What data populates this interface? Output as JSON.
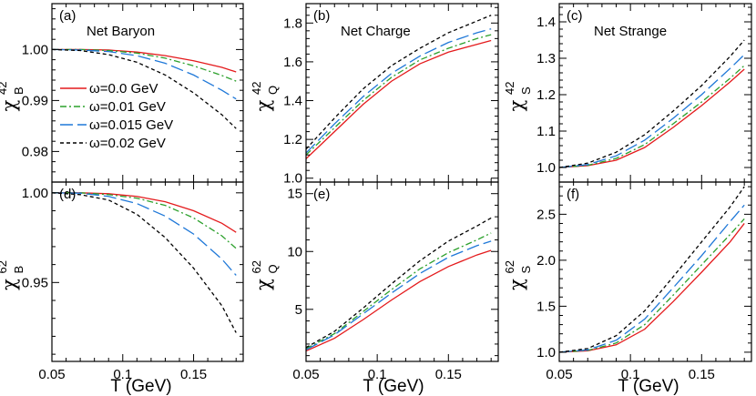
{
  "chart_data": [
    {
      "type": "line",
      "panel": "(a)",
      "title": "Net Baryon",
      "ylabel_sym": "χ",
      "ylabel_sup": "42",
      "ylabel_sub": "B",
      "xlim": [
        0.05,
        0.185
      ],
      "ylim": [
        0.974,
        1.009
      ],
      "xticks": [
        0.05,
        0.1,
        0.15
      ],
      "xticklabels": [
        "",
        "",
        ""
      ],
      "yticks": [
        0.98,
        0.99,
        1.0
      ],
      "yticklabels": [
        "0.98",
        "0.99",
        "1.00"
      ],
      "x": [
        0.05,
        0.07,
        0.09,
        0.11,
        0.13,
        0.15,
        0.17,
        0.18
      ],
      "series": [
        {
          "name": "ω=0.0 GeV",
          "color": "#e41a1c",
          "dash": "solid",
          "values": [
            1.0,
            1.0,
            0.9999,
            0.9995,
            0.9988,
            0.9978,
            0.9965,
            0.9956
          ]
        },
        {
          "name": "ω=0.01 GeV",
          "color": "#2ca02c",
          "dash": "dashdot",
          "values": [
            1.0,
            1.0,
            0.9998,
            0.9993,
            0.9983,
            0.9968,
            0.9949,
            0.9938
          ]
        },
        {
          "name": "ω=0.015 GeV",
          "color": "#1f78d8",
          "dash": "longdash",
          "values": [
            1.0,
            0.9999,
            0.9996,
            0.9988,
            0.9973,
            0.995,
            0.992,
            0.9903
          ]
        },
        {
          "name": "ω=0.02 GeV",
          "color": "#000000",
          "dash": "dash",
          "values": [
            1.0,
            0.9998,
            0.999,
            0.9975,
            0.995,
            0.9915,
            0.9872,
            0.9845
          ]
        }
      ]
    },
    {
      "type": "line",
      "panel": "(b)",
      "title": "Net Charge",
      "ylabel_sym": "χ",
      "ylabel_sup": "42",
      "ylabel_sub": "Q",
      "xlim": [
        0.05,
        0.185
      ],
      "ylim": [
        0.98,
        1.9
      ],
      "xticks": [
        0.05,
        0.1,
        0.15
      ],
      "xticklabels": [
        "",
        "",
        ""
      ],
      "yticks": [
        1.0,
        1.2,
        1.4,
        1.6,
        1.8
      ],
      "yticklabels": [
        "1.0",
        "1.2",
        "1.4",
        "1.6",
        "1.8"
      ],
      "x": [
        0.05,
        0.07,
        0.09,
        0.11,
        0.13,
        0.15,
        0.17,
        0.18
      ],
      "series": [
        {
          "name": "ω=0.0 GeV",
          "color": "#e41a1c",
          "dash": "solid",
          "values": [
            1.1,
            1.24,
            1.38,
            1.5,
            1.59,
            1.65,
            1.69,
            1.71
          ]
        },
        {
          "name": "ω=0.01 GeV",
          "color": "#2ca02c",
          "dash": "dashdot",
          "values": [
            1.12,
            1.26,
            1.4,
            1.52,
            1.61,
            1.67,
            1.72,
            1.74
          ]
        },
        {
          "name": "ω=0.015 GeV",
          "color": "#1f78d8",
          "dash": "longdash",
          "values": [
            1.13,
            1.28,
            1.42,
            1.54,
            1.63,
            1.7,
            1.75,
            1.77
          ]
        },
        {
          "name": "ω=0.02 GeV",
          "color": "#000000",
          "dash": "dash",
          "values": [
            1.15,
            1.31,
            1.46,
            1.58,
            1.67,
            1.75,
            1.81,
            1.84
          ]
        }
      ]
    },
    {
      "type": "line",
      "panel": "(c)",
      "title": "Net Strange",
      "ylabel_sym": "χ",
      "ylabel_sup": "42",
      "ylabel_sub": "S",
      "xlim": [
        0.05,
        0.185
      ],
      "ylim": [
        0.96,
        1.45
      ],
      "xticks": [
        0.05,
        0.1,
        0.15
      ],
      "xticklabels": [
        "",
        "",
        ""
      ],
      "yticks": [
        1.0,
        1.1,
        1.2,
        1.3,
        1.4
      ],
      "yticklabels": [
        "1.0",
        "1.1",
        "1.2",
        "1.3",
        "1.4"
      ],
      "x": [
        0.05,
        0.07,
        0.09,
        0.11,
        0.13,
        0.15,
        0.17,
        0.18
      ],
      "series": [
        {
          "name": "ω=0.0 GeV",
          "color": "#e41a1c",
          "dash": "solid",
          "values": [
            1.0,
            1.005,
            1.02,
            1.055,
            1.11,
            1.17,
            1.235,
            1.27
          ]
        },
        {
          "name": "ω=0.01 GeV",
          "color": "#2ca02c",
          "dash": "dashdot",
          "values": [
            1.0,
            1.006,
            1.025,
            1.063,
            1.12,
            1.18,
            1.245,
            1.28
          ]
        },
        {
          "name": "ω=0.015 GeV",
          "color": "#1f78d8",
          "dash": "longdash",
          "values": [
            1.0,
            1.008,
            1.032,
            1.075,
            1.135,
            1.2,
            1.272,
            1.31
          ]
        },
        {
          "name": "ω=0.02 GeV",
          "color": "#000000",
          "dash": "dash",
          "values": [
            1.0,
            1.012,
            1.042,
            1.09,
            1.155,
            1.225,
            1.305,
            1.35
          ]
        }
      ]
    },
    {
      "type": "line",
      "panel": "(d)",
      "title": "",
      "ylabel_sym": "χ",
      "ylabel_sup": "62",
      "ylabel_sub": "B",
      "xlim": [
        0.05,
        0.185
      ],
      "ylim": [
        0.906,
        1.006
      ],
      "xticks": [
        0.05,
        0.1,
        0.15
      ],
      "xticklabels": [
        "0.05",
        "0.1",
        "0.15"
      ],
      "yticks": [
        0.95,
        1.0
      ],
      "yticklabels": [
        "0.95",
        "1.00"
      ],
      "x": [
        0.05,
        0.07,
        0.09,
        0.11,
        0.13,
        0.15,
        0.17,
        0.18
      ],
      "series": [
        {
          "name": "ω=0.0 GeV",
          "color": "#e41a1c",
          "dash": "solid",
          "values": [
            1.0,
            1.0,
            0.9995,
            0.998,
            0.995,
            0.99,
            0.983,
            0.978
          ]
        },
        {
          "name": "ω=0.01 GeV",
          "color": "#2ca02c",
          "dash": "dashdot",
          "values": [
            1.0,
            1.0,
            0.999,
            0.997,
            0.993,
            0.986,
            0.976,
            0.969
          ]
        },
        {
          "name": "ω=0.015 GeV",
          "color": "#1f78d8",
          "dash": "longdash",
          "values": [
            1.0,
            0.9998,
            0.998,
            0.994,
            0.987,
            0.977,
            0.963,
            0.954
          ]
        },
        {
          "name": "ω=0.02 GeV",
          "color": "#000000",
          "dash": "dash",
          "values": [
            1.0,
            0.999,
            0.996,
            0.988,
            0.975,
            0.958,
            0.937,
            0.922
          ]
        }
      ]
    },
    {
      "type": "line",
      "panel": "(e)",
      "title": "",
      "ylabel_sym": "χ",
      "ylabel_sup": "62",
      "ylabel_sub": "Q",
      "xlim": [
        0.05,
        0.185
      ],
      "ylim": [
        0.5,
        16.0
      ],
      "xticks": [
        0.05,
        0.1,
        0.15
      ],
      "xticklabels": [
        "0.05",
        "0.1",
        "0.15"
      ],
      "yticks": [
        5,
        10,
        15
      ],
      "yticklabels": [
        "5",
        "10",
        "15"
      ],
      "x": [
        0.05,
        0.07,
        0.09,
        0.11,
        0.13,
        0.15,
        0.17,
        0.18
      ],
      "series": [
        {
          "name": "ω=0.0 GeV",
          "color": "#e41a1c",
          "dash": "solid",
          "values": [
            1.4,
            2.5,
            4.1,
            5.8,
            7.4,
            8.7,
            9.7,
            10.1
          ]
        },
        {
          "name": "ω=0.01 GeV",
          "color": "#2ca02c",
          "dash": "dashdot",
          "values": [
            1.6,
            2.9,
            4.8,
            6.7,
            8.5,
            9.9,
            11.0,
            11.6
          ]
        },
        {
          "name": "ω=0.015 GeV",
          "color": "#1f78d8",
          "dash": "longdash",
          "values": [
            1.5,
            2.8,
            4.6,
            6.4,
            8.1,
            9.5,
            10.5,
            10.9
          ]
        },
        {
          "name": "ω=0.02 GeV",
          "color": "#000000",
          "dash": "dash",
          "values": [
            1.7,
            3.1,
            5.1,
            7.2,
            9.2,
            10.9,
            12.2,
            12.9
          ]
        }
      ]
    },
    {
      "type": "line",
      "panel": "(f)",
      "title": "",
      "ylabel_sym": "χ",
      "ylabel_sup": "62",
      "ylabel_sub": "S",
      "xlim": [
        0.05,
        0.185
      ],
      "ylim": [
        0.9,
        2.85
      ],
      "xticks": [
        0.05,
        0.1,
        0.15
      ],
      "xticklabels": [
        "0.05",
        "0.1",
        "0.15"
      ],
      "yticks": [
        1.0,
        1.5,
        2.0,
        2.5
      ],
      "yticklabels": [
        "1.0",
        "1.5",
        "2.0",
        "2.5"
      ],
      "x": [
        0.05,
        0.07,
        0.09,
        0.11,
        0.13,
        0.15,
        0.17,
        0.18
      ],
      "series": [
        {
          "name": "ω=0.0 GeV",
          "color": "#e41a1c",
          "dash": "solid",
          "values": [
            1.0,
            1.015,
            1.08,
            1.25,
            1.55,
            1.87,
            2.2,
            2.4
          ]
        },
        {
          "name": "ω=0.01 GeV",
          "color": "#2ca02c",
          "dash": "dashdot",
          "values": [
            1.0,
            1.02,
            1.1,
            1.3,
            1.62,
            1.95,
            2.28,
            2.45
          ]
        },
        {
          "name": "ω=0.015 GeV",
          "color": "#1f78d8",
          "dash": "longdash",
          "values": [
            1.0,
            1.025,
            1.13,
            1.36,
            1.7,
            2.05,
            2.42,
            2.6
          ]
        },
        {
          "name": "ω=0.02 GeV",
          "color": "#000000",
          "dash": "dash",
          "values": [
            1.0,
            1.04,
            1.18,
            1.45,
            1.82,
            2.2,
            2.58,
            2.8
          ]
        }
      ]
    }
  ],
  "legend": {
    "location": "panel (a), lower-left",
    "entries": [
      {
        "label": "ω=0.0 GeV",
        "color": "#e41a1c",
        "dash": "solid"
      },
      {
        "label": "ω=0.01 GeV",
        "color": "#2ca02c",
        "dash": "dashdot"
      },
      {
        "label": "ω=0.015 GeV",
        "color": "#1f78d8",
        "dash": "longdash"
      },
      {
        "label": "ω=0.02 GeV",
        "color": "#000000",
        "dash": "dash"
      }
    ]
  },
  "xlabel": "T (GeV)"
}
